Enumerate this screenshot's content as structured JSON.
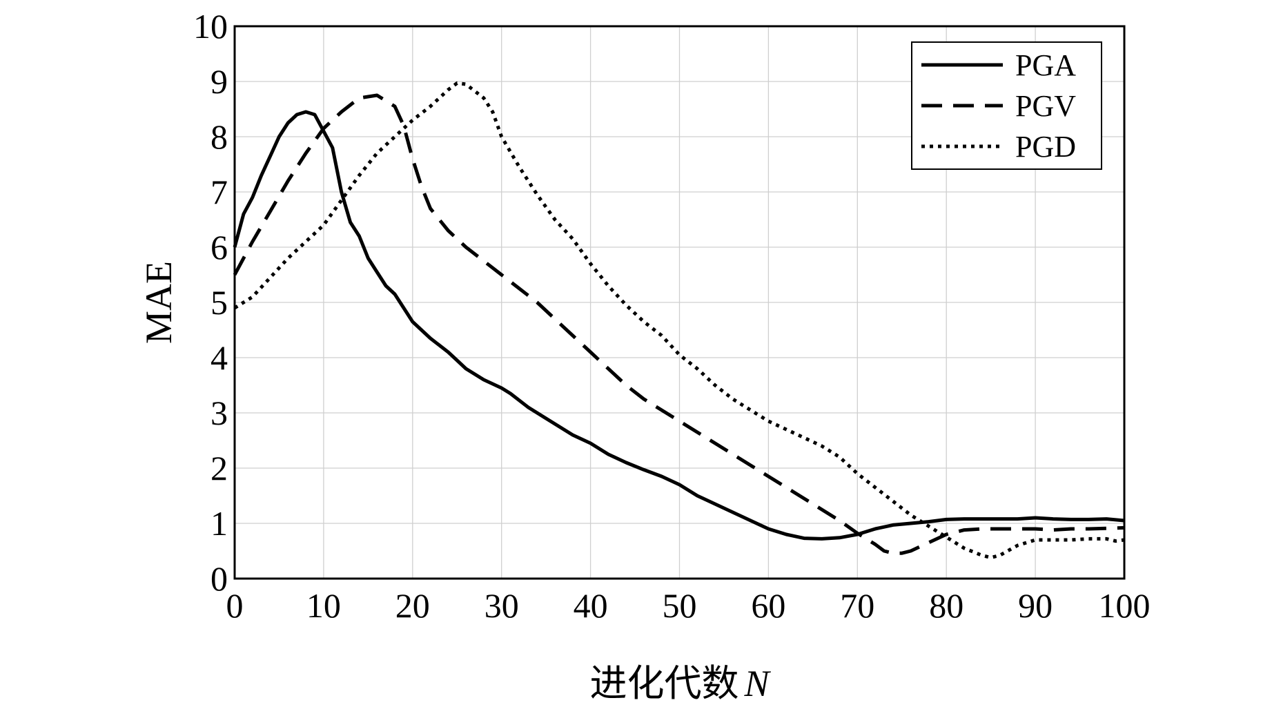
{
  "chart_data": {
    "type": "line",
    "title": "",
    "xlabel": "进化代数 N",
    "xlabel_main": "进化代数",
    "xlabel_var": "N",
    "ylabel": "MAE",
    "xlim": [
      0,
      100
    ],
    "ylim": [
      0,
      10
    ],
    "xticks": [
      0,
      10,
      20,
      30,
      40,
      50,
      60,
      70,
      80,
      90,
      100
    ],
    "yticks": [
      0,
      1,
      2,
      3,
      4,
      5,
      6,
      7,
      8,
      9,
      10
    ],
    "grid": true,
    "legend_position": "top-right",
    "series": [
      {
        "name": "PGA",
        "style": "solid",
        "x": [
          0,
          1,
          2,
          3,
          4,
          5,
          6,
          7,
          8,
          9,
          10,
          11,
          12,
          13,
          14,
          15,
          16,
          17,
          18,
          19,
          20,
          22,
          24,
          25,
          26,
          28,
          30,
          31,
          33,
          35,
          37,
          38,
          40,
          42,
          44,
          46,
          48,
          50,
          52,
          54,
          56,
          58,
          60,
          62,
          64,
          66,
          68,
          70,
          72,
          74,
          76,
          78,
          80,
          82,
          84,
          86,
          88,
          90,
          92,
          94,
          96,
          98,
          100
        ],
        "values": [
          6.0,
          6.6,
          6.9,
          7.3,
          7.65,
          8.0,
          8.25,
          8.4,
          8.45,
          8.4,
          8.1,
          7.8,
          7.0,
          6.45,
          6.2,
          5.8,
          5.55,
          5.3,
          5.15,
          4.9,
          4.65,
          4.35,
          4.1,
          3.95,
          3.8,
          3.6,
          3.45,
          3.35,
          3.1,
          2.9,
          2.7,
          2.6,
          2.45,
          2.25,
          2.1,
          1.97,
          1.85,
          1.7,
          1.5,
          1.35,
          1.2,
          1.05,
          0.9,
          0.8,
          0.73,
          0.72,
          0.74,
          0.8,
          0.9,
          0.97,
          1.0,
          1.03,
          1.07,
          1.08,
          1.08,
          1.08,
          1.08,
          1.1,
          1.08,
          1.07,
          1.07,
          1.08,
          1.05
        ]
      },
      {
        "name": "PGV",
        "style": "dashed",
        "x": [
          0,
          2,
          4,
          6,
          8,
          10,
          12,
          14,
          16,
          18,
          19,
          20,
          21,
          22,
          24,
          26,
          28,
          30,
          32,
          34,
          36,
          38,
          40,
          42,
          44,
          46,
          48,
          50,
          52,
          54,
          56,
          58,
          60,
          62,
          64,
          66,
          68,
          70,
          72,
          73,
          74,
          75,
          76,
          78,
          80,
          82,
          84,
          86,
          88,
          90,
          92,
          94,
          96,
          98,
          100
        ],
        "values": [
          5.5,
          6.1,
          6.65,
          7.2,
          7.7,
          8.15,
          8.45,
          8.7,
          8.75,
          8.55,
          8.2,
          7.6,
          7.1,
          6.7,
          6.3,
          6.0,
          5.75,
          5.5,
          5.25,
          5.0,
          4.7,
          4.4,
          4.1,
          3.8,
          3.5,
          3.25,
          3.05,
          2.85,
          2.65,
          2.45,
          2.25,
          2.05,
          1.85,
          1.65,
          1.45,
          1.25,
          1.05,
          0.82,
          0.62,
          0.5,
          0.46,
          0.46,
          0.5,
          0.65,
          0.8,
          0.88,
          0.9,
          0.9,
          0.9,
          0.9,
          0.88,
          0.9,
          0.9,
          0.91,
          0.92
        ]
      },
      {
        "name": "PGD",
        "style": "dotted",
        "x": [
          0,
          2,
          4,
          6,
          8,
          10,
          12,
          14,
          16,
          18,
          20,
          22,
          24,
          25,
          26,
          28,
          29,
          30,
          32,
          34,
          36,
          38,
          40,
          42,
          44,
          46,
          48,
          50,
          52,
          54,
          56,
          58,
          60,
          62,
          64,
          66,
          68,
          70,
          72,
          74,
          76,
          78,
          80,
          82,
          84,
          85,
          86,
          88,
          90,
          92,
          94,
          96,
          98,
          99,
          100
        ],
        "values": [
          4.9,
          5.1,
          5.45,
          5.8,
          6.1,
          6.4,
          6.85,
          7.3,
          7.7,
          8.0,
          8.3,
          8.55,
          8.85,
          8.97,
          8.95,
          8.7,
          8.45,
          8.0,
          7.45,
          6.95,
          6.5,
          6.15,
          5.7,
          5.3,
          4.95,
          4.65,
          4.4,
          4.05,
          3.8,
          3.5,
          3.25,
          3.05,
          2.85,
          2.7,
          2.55,
          2.4,
          2.2,
          1.9,
          1.65,
          1.4,
          1.15,
          0.95,
          0.75,
          0.55,
          0.42,
          0.38,
          0.42,
          0.6,
          0.7,
          0.7,
          0.7,
          0.72,
          0.72,
          0.68,
          0.7
        ]
      }
    ]
  }
}
